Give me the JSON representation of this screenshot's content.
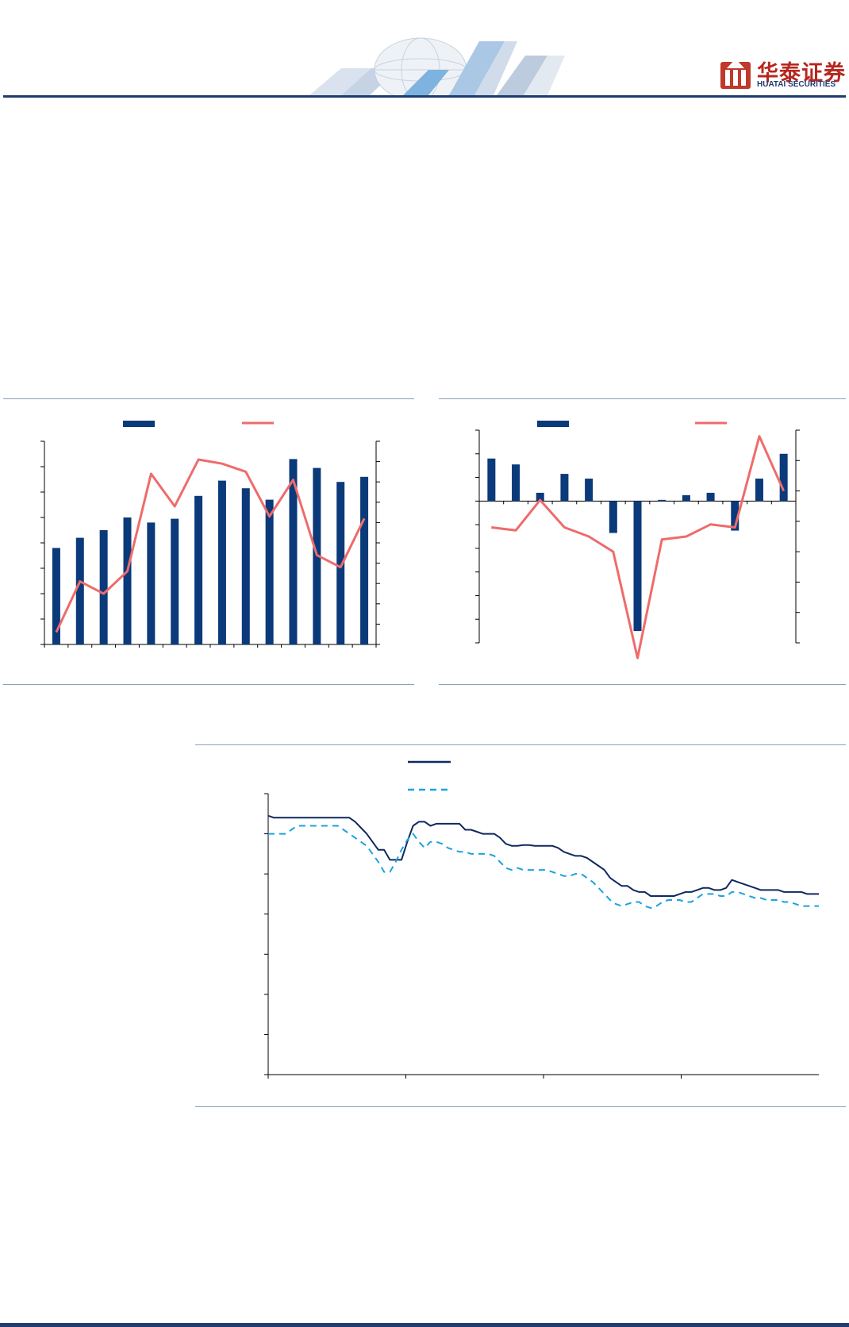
{
  "header": {
    "logo_cn": "华泰证券",
    "logo_en": "HUATAI SECURITIES",
    "colors": {
      "brand_red": "#b5281f",
      "brand_navy": "#1f3b6f"
    }
  },
  "colors": {
    "bar": "#0b3a7a",
    "line_red": "#ef6b6b",
    "line_navy": "#0d2a5e",
    "line_dashed": "#1aa3df"
  },
  "chart_data": [
    {
      "type": "bar",
      "combo": "bar + line (secondary axis)",
      "legend_placement": "top",
      "grid": false,
      "ylim": [
        0,
        8
      ],
      "y2lim": [
        0,
        10
      ],
      "series": [
        {
          "type": "bar",
          "axis": "left",
          "values": [
            3.8,
            4.2,
            4.5,
            5.0,
            4.8,
            4.95,
            5.85,
            6.45,
            6.15,
            5.7,
            7.3,
            6.95,
            6.4,
            6.6
          ]
        },
        {
          "type": "line",
          "axis": "right",
          "values": [
            0.6,
            3.1,
            2.5,
            3.6,
            8.4,
            6.8,
            9.1,
            8.9,
            8.5,
            6.3,
            8.1,
            4.4,
            3.8,
            6.2
          ]
        }
      ]
    },
    {
      "type": "bar",
      "combo": "bar + line (secondary axis)",
      "legend_placement": "top",
      "grid": false,
      "ylim": [
        -6,
        3
      ],
      "y2lim": [
        -5,
        2
      ],
      "series": [
        {
          "type": "bar",
          "axis": "left",
          "values": [
            1.8,
            1.55,
            0.35,
            1.15,
            0.95,
            -1.35,
            -5.5,
            0.05,
            0.25,
            0.35,
            -1.25,
            0.95,
            2.0
          ]
        },
        {
          "type": "line",
          "axis": "right",
          "values": [
            -1.2,
            -1.3,
            -0.3,
            -1.2,
            -1.5,
            -2.0,
            -5.5,
            -1.6,
            -1.5,
            -1.1,
            -1.2,
            1.8,
            0.0
          ]
        }
      ]
    },
    {
      "type": "line",
      "legend_placement": "top",
      "grid": false,
      "ylim": [
        0,
        7
      ],
      "series": [
        {
          "style": "solid",
          "values": [
            6.45,
            6.4,
            6.4,
            6.4,
            6.4,
            6.4,
            6.4,
            6.4,
            6.4,
            6.4,
            6.4,
            6.4,
            6.4,
            6.4,
            6.4,
            6.3,
            6.15,
            6.0,
            5.8,
            5.6,
            5.6,
            5.35,
            5.35,
            5.35,
            5.8,
            6.2,
            6.3,
            6.3,
            6.2,
            6.25,
            6.25,
            6.25,
            6.25,
            6.25,
            6.1,
            6.1,
            6.05,
            6.0,
            6.0,
            6.0,
            5.9,
            5.75,
            5.7,
            5.7,
            5.72,
            5.72,
            5.7,
            5.7,
            5.7,
            5.7,
            5.65,
            5.55,
            5.5,
            5.45,
            5.45,
            5.4,
            5.3,
            5.2,
            5.1,
            4.9,
            4.8,
            4.7,
            4.7,
            4.6,
            4.55,
            4.55,
            4.45,
            4.45,
            4.45,
            4.45,
            4.45,
            4.5,
            4.55,
            4.55,
            4.6,
            4.65,
            4.65,
            4.6,
            4.6,
            4.65,
            4.85,
            4.8,
            4.75,
            4.7,
            4.65,
            4.6,
            4.6,
            4.6,
            4.6,
            4.55,
            4.55,
            4.55,
            4.55,
            4.5,
            4.5,
            4.5
          ]
        },
        {
          "style": "dashed",
          "values": [
            6.0,
            6.0,
            6.0,
            6.0,
            6.1,
            6.2,
            6.2,
            6.2,
            6.2,
            6.2,
            6.2,
            6.2,
            6.2,
            6.1,
            6.0,
            5.9,
            5.8,
            5.7,
            5.5,
            5.3,
            5.05,
            5.05,
            5.3,
            5.6,
            5.85,
            6.0,
            5.8,
            5.65,
            5.8,
            5.8,
            5.75,
            5.65,
            5.6,
            5.55,
            5.55,
            5.5,
            5.5,
            5.5,
            5.5,
            5.45,
            5.3,
            5.15,
            5.1,
            5.15,
            5.1,
            5.1,
            5.1,
            5.1,
            5.1,
            5.05,
            5.0,
            4.95,
            4.95,
            5.0,
            5.0,
            4.9,
            4.8,
            4.65,
            4.5,
            4.35,
            4.25,
            4.2,
            4.25,
            4.3,
            4.3,
            4.2,
            4.15,
            4.2,
            4.3,
            4.35,
            4.35,
            4.35,
            4.3,
            4.3,
            4.4,
            4.5,
            4.5,
            4.5,
            4.45,
            4.45,
            4.55,
            4.55,
            4.5,
            4.45,
            4.4,
            4.4,
            4.35,
            4.35,
            4.35,
            4.3,
            4.3,
            4.25,
            4.2,
            4.2,
            4.2,
            4.2
          ]
        }
      ]
    }
  ]
}
